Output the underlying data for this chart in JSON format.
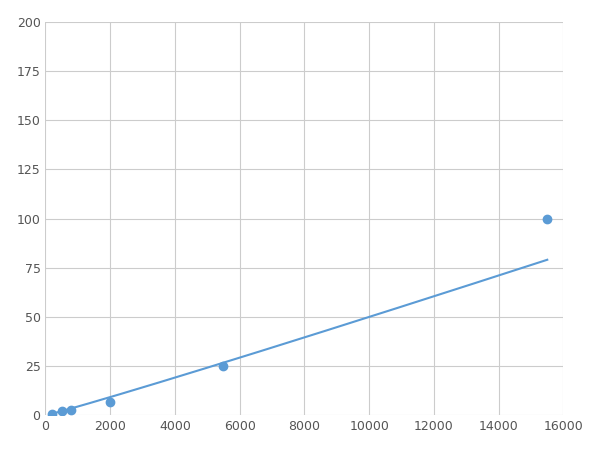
{
  "x": [
    200,
    500,
    800,
    2000,
    5500,
    15500
  ],
  "y": [
    1.0,
    2.5,
    3.0,
    7.0,
    25.0,
    100.0
  ],
  "line_color": "#5b9bd5",
  "marker_color": "#5b9bd5",
  "marker_size": 6,
  "linewidth": 1.5,
  "xlim": [
    0,
    16000
  ],
  "ylim": [
    0,
    200
  ],
  "xticks": [
    0,
    2000,
    4000,
    6000,
    8000,
    10000,
    12000,
    14000,
    16000
  ],
  "yticks": [
    0,
    25,
    50,
    75,
    100,
    125,
    150,
    175,
    200
  ],
  "grid_color": "#cccccc",
  "background_color": "#ffffff",
  "fig_background": "#ffffff"
}
